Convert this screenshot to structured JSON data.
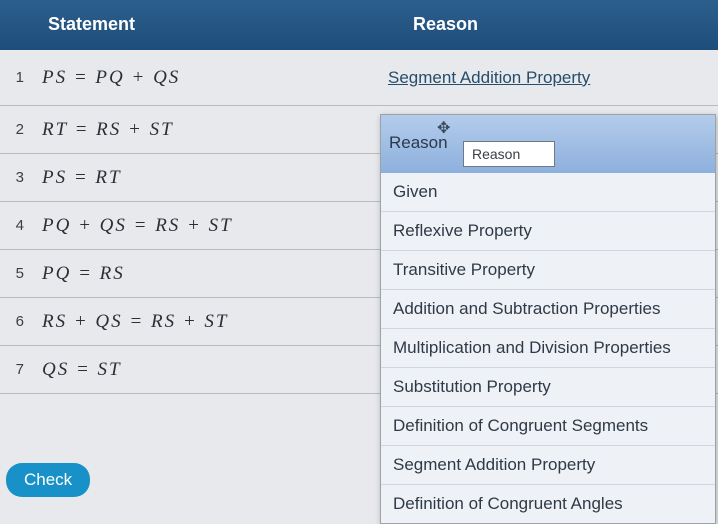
{
  "header": {
    "statement": "Statement",
    "reason": "Reason"
  },
  "rows": [
    {
      "num": "1",
      "statement": "PS = PQ + QS",
      "reason": "Segment Addition Property"
    },
    {
      "num": "2",
      "statement": "RT = RS + ST",
      "reason": ""
    },
    {
      "num": "3",
      "statement": "PS = RT",
      "reason": ""
    },
    {
      "num": "4",
      "statement": "PQ + QS = RS + ST",
      "reason": ""
    },
    {
      "num": "5",
      "statement": "PQ = RS",
      "reason": ""
    },
    {
      "num": "6",
      "statement": "RS + QS = RS + ST",
      "reason": ""
    },
    {
      "num": "7",
      "statement": "QS = ST",
      "reason": ""
    }
  ],
  "dropdown": {
    "label": "Reason",
    "input": "Reason",
    "options": [
      "Given",
      "Reflexive Property",
      "Transitive Property",
      "Addition and Subtraction Properties",
      "Multiplication and Division Properties",
      "Substitution Property",
      "Definition of Congruent Segments",
      "Segment Addition Property",
      "Definition of Congruent Angles"
    ]
  },
  "buttons": {
    "check": "Check"
  }
}
